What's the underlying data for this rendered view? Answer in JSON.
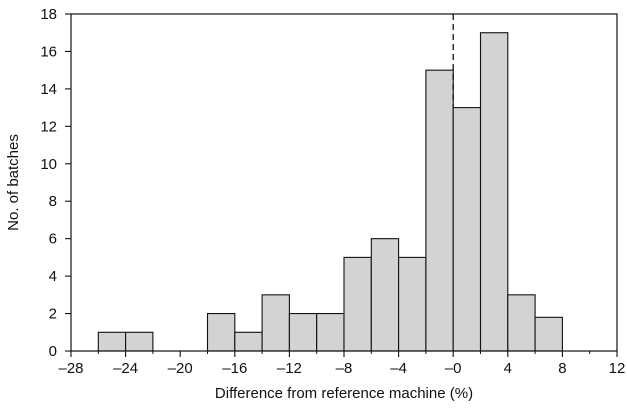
{
  "chart_data": {
    "type": "bar",
    "title": "",
    "xlabel": "Difference from reference machine (%)",
    "ylabel": "No. of batches",
    "xlim": [
      -28,
      12
    ],
    "ylim": [
      0,
      18
    ],
    "bin_width": 2,
    "x_ticks": [
      -28,
      -24,
      -20,
      -16,
      -12,
      -8,
      -4,
      0,
      4,
      8,
      12
    ],
    "x_tick_labels": [
      "–28",
      "–24",
      "–20",
      "–16",
      "–12",
      "–8",
      "–4",
      "–0",
      "4",
      "8",
      "12"
    ],
    "y_ticks": [
      0,
      2,
      4,
      6,
      8,
      10,
      12,
      14,
      16,
      18
    ],
    "y_tick_labels": [
      "0",
      "2",
      "4",
      "6",
      "8",
      "10",
      "12",
      "14",
      "16",
      "18"
    ],
    "grid": false,
    "bars": [
      {
        "x_start": -26,
        "x_end": -24,
        "value": 1
      },
      {
        "x_start": -24,
        "x_end": -22,
        "value": 1
      },
      {
        "x_start": -18,
        "x_end": -16,
        "value": 2
      },
      {
        "x_start": -16,
        "x_end": -14,
        "value": 1
      },
      {
        "x_start": -14,
        "x_end": -12,
        "value": 3
      },
      {
        "x_start": -12,
        "x_end": -10,
        "value": 2
      },
      {
        "x_start": -10,
        "x_end": -8,
        "value": 2
      },
      {
        "x_start": -8,
        "x_end": -6,
        "value": 5
      },
      {
        "x_start": -6,
        "x_end": -4,
        "value": 6
      },
      {
        "x_start": -4,
        "x_end": -2,
        "value": 5
      },
      {
        "x_start": -2,
        "x_end": 0,
        "value": 15
      },
      {
        "x_start": 0,
        "x_end": 2,
        "value": 13
      },
      {
        "x_start": 2,
        "x_end": 4,
        "value": 17
      },
      {
        "x_start": 4,
        "x_end": 6,
        "value": 3
      },
      {
        "x_start": 6,
        "x_end": 8,
        "value": 1.8
      }
    ],
    "reference_line": {
      "x": 0,
      "style": "dashed"
    },
    "bar_fill": "#d3d3d3",
    "bar_stroke": "#111111"
  }
}
